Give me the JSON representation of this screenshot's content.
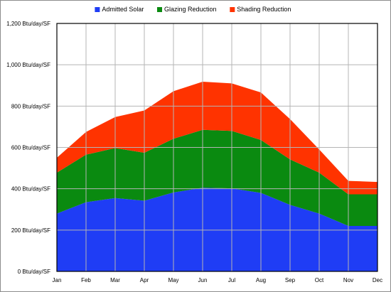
{
  "chart_data": {
    "type": "area",
    "stacked": true,
    "title": "",
    "xlabel": "",
    "ylabel": "",
    "categories": [
      "Jan",
      "Feb",
      "Mar",
      "Apr",
      "May",
      "Jun",
      "Jul",
      "Aug",
      "Sep",
      "Oct",
      "Nov",
      "Dec"
    ],
    "ylim": [
      0,
      1200
    ],
    "y_ticks": [
      0,
      200,
      400,
      600,
      800,
      1000,
      1200
    ],
    "y_tick_labels": [
      "0 Btu/day/SF",
      "200 Btu/day/SF",
      "400 Btu/day/SF",
      "600 Btu/day/SF",
      "800 Btu/day/SF",
      "1,000 Btu/day/SF",
      "1,200 Btu/day/SF"
    ],
    "grid": true,
    "legend_position": "top",
    "series": [
      {
        "name": "Admitted Solar",
        "color": "#1f3df5",
        "values": [
          280,
          335,
          355,
          342,
          382,
          405,
          402,
          380,
          322,
          280,
          220,
          220
        ]
      },
      {
        "name": "Glazing Reduction",
        "color": "#0a8a10",
        "values": [
          198,
          230,
          242,
          232,
          260,
          280,
          278,
          256,
          220,
          198,
          153,
          153
        ]
      },
      {
        "name": "Shading Reduction",
        "color": "#ff3300",
        "values": [
          72,
          110,
          150,
          205,
          230,
          233,
          230,
          230,
          195,
          112,
          65,
          60
        ]
      }
    ]
  }
}
